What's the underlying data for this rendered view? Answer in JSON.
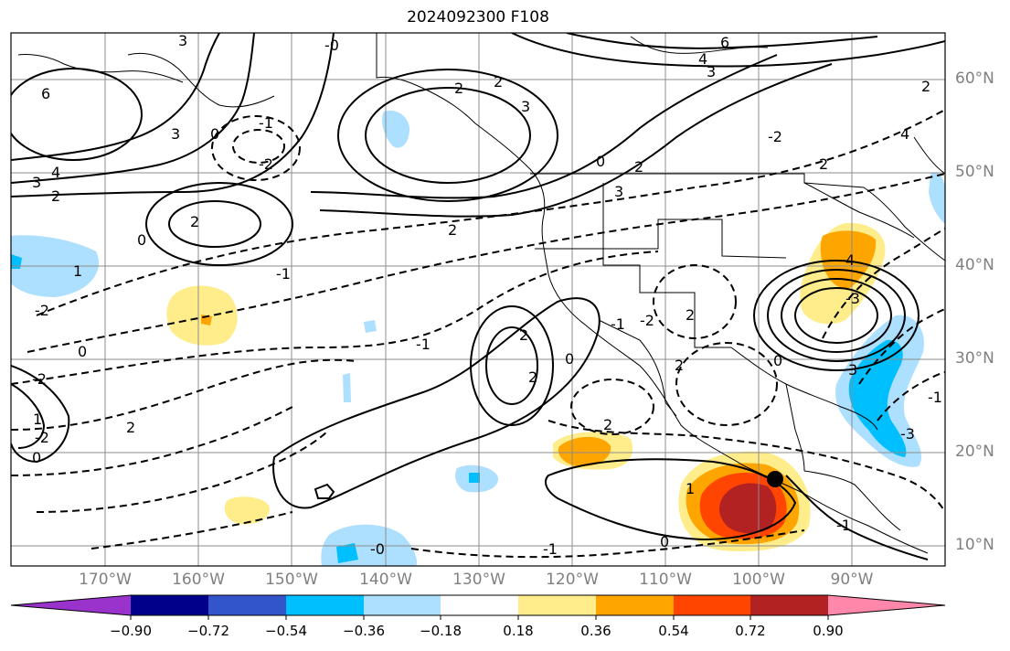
{
  "title": "2024092300 F108",
  "map": {
    "lat_labels": [
      "60°N",
      "50°N",
      "40°N",
      "30°N",
      "20°N",
      "10°N"
    ],
    "lon_labels": [
      "170°W",
      "160°W",
      "150°W",
      "140°W",
      "130°W",
      "120°W",
      "110°W",
      "100°W",
      "90°W"
    ],
    "contour_labels": [
      "-0",
      "6",
      "4",
      "3",
      "2",
      "3",
      "2",
      "3",
      "0",
      "-1",
      "-2",
      "0",
      "2",
      "3",
      "0",
      "2",
      "3",
      "4",
      "2",
      "2",
      "2",
      "1",
      "-1",
      "-2",
      "0",
      "-1",
      "2",
      "2",
      "0",
      "-2",
      "1",
      "-2",
      "0",
      "2",
      "-1",
      "-2",
      "1",
      "-0",
      "0",
      "-1",
      "2",
      "-1",
      "0",
      "4",
      "-3",
      "3",
      "-3",
      "2",
      "2",
      "2",
      "6",
      "4",
      "3",
      "-2",
      "-1"
    ],
    "colors": {
      "coast": "#000000",
      "grid": "#8c8c8c",
      "contour": "#000000"
    }
  },
  "colorbar": {
    "colors": [
      "#9933cc",
      "#00008b",
      "#3355cc",
      "#00bfff",
      "#addfff",
      "#ffffff",
      "#ffec8b",
      "#ffa500",
      "#ff4500",
      "#b22222",
      "#ff88aa"
    ],
    "tick_labels": [
      "−0.90",
      "−0.72",
      "−0.54",
      "−0.36",
      "−0.18",
      "0.18",
      "0.36",
      "0.54",
      "0.72",
      "0.90"
    ]
  }
}
